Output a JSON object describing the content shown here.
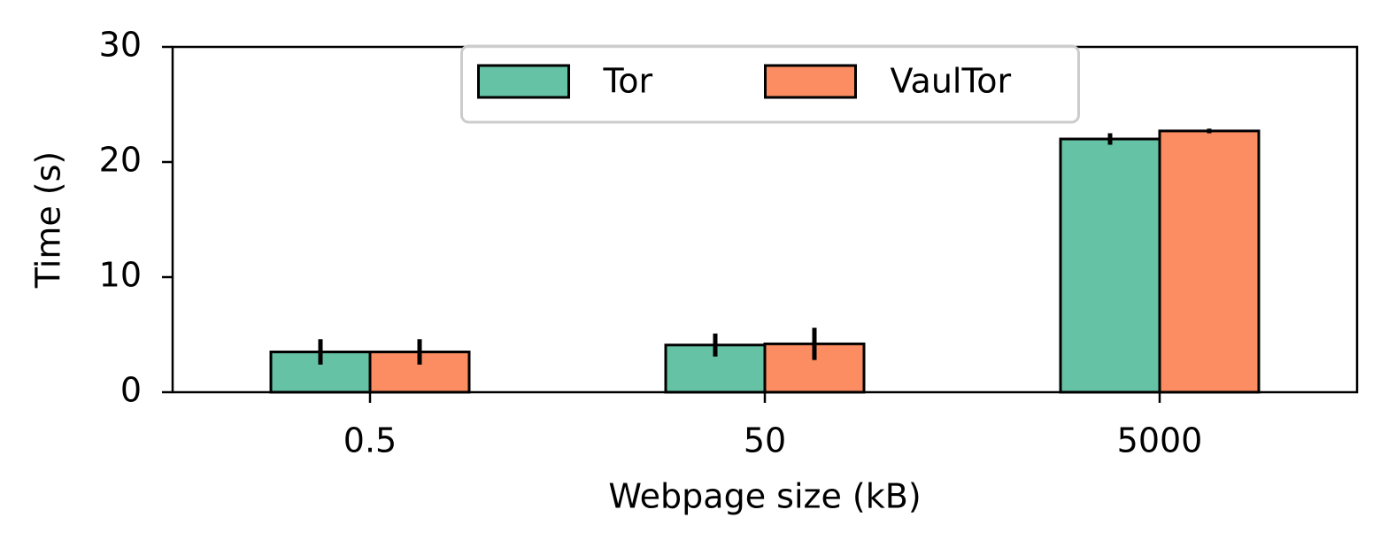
{
  "chart_data": {
    "type": "bar",
    "xlabel": "Webpage size (kB)",
    "ylabel": "Time (s)",
    "categories": [
      "0.5",
      "50",
      "5000"
    ],
    "series": [
      {
        "name": "Tor",
        "color": "#66c2a5",
        "values": [
          3.5,
          4.1,
          22.0
        ],
        "errors": [
          1.1,
          1.0,
          0.5
        ]
      },
      {
        "name": "VaulTor",
        "color": "#fc8d62",
        "values": [
          3.5,
          4.2,
          22.7
        ],
        "errors": [
          1.1,
          1.4,
          0.2
        ]
      }
    ],
    "ylim": [
      0,
      30
    ],
    "yticks": [
      0,
      10,
      20,
      30
    ],
    "grid": false,
    "legend_loc": "upper center"
  }
}
